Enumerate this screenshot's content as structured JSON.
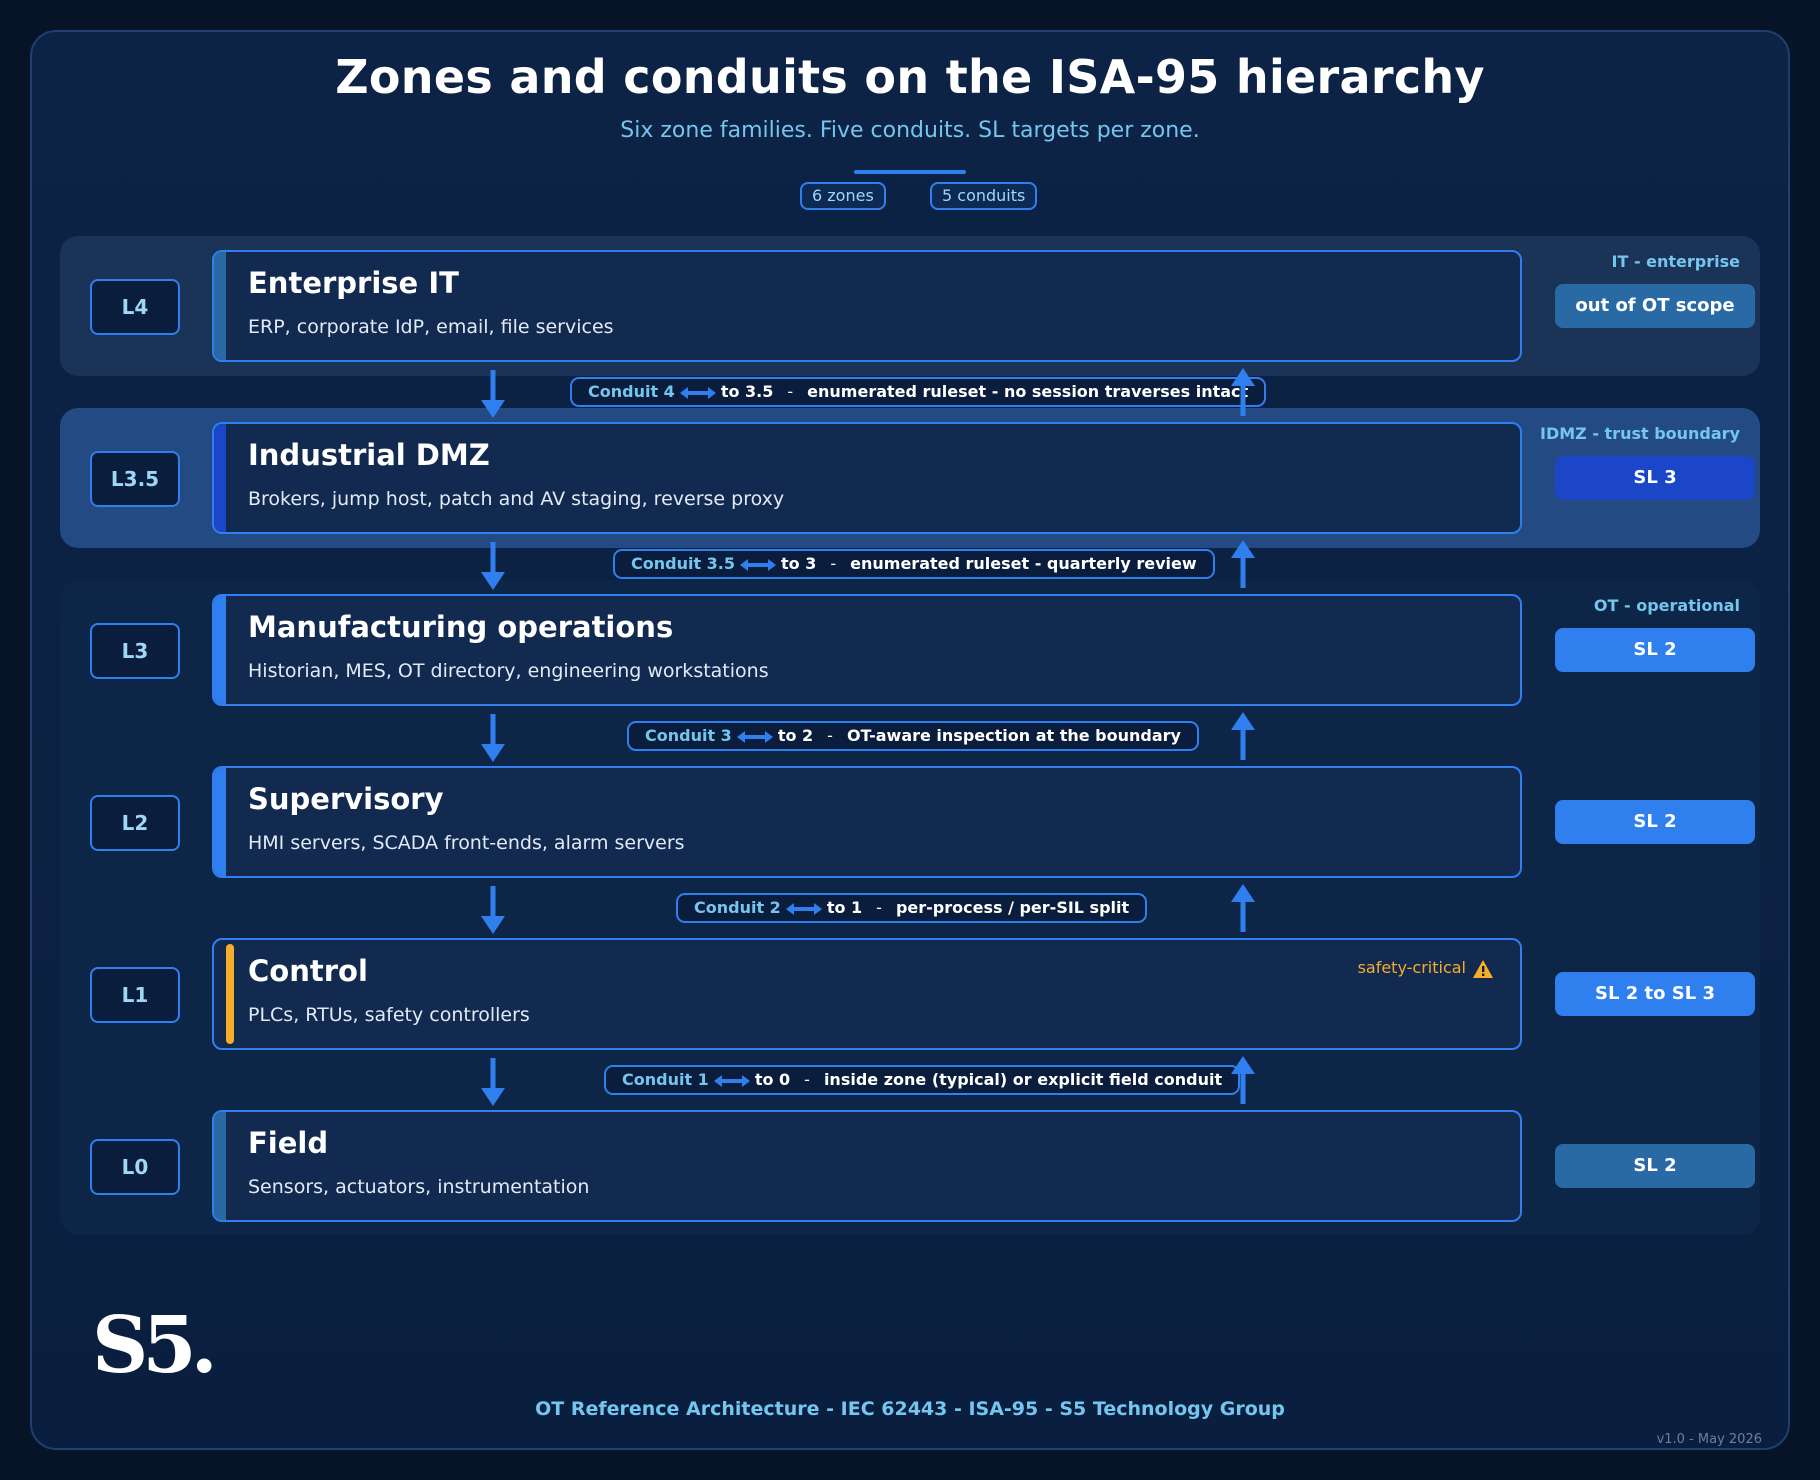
{
  "header": {
    "title": "Zones and conduits on the ISA-95 hierarchy",
    "subtitle": "Six zone families. Five conduits. SL targets per zone.",
    "zones_count": "6 zones",
    "conduits_count": "5 conduits"
  },
  "bands": {
    "it": "IT  -  enterprise",
    "idmz": "IDMZ  -  trust boundary",
    "ot": "OT  -  operational"
  },
  "zones": [
    {
      "level": "L4",
      "name": "Enterprise IT",
      "desc": "ERP, corporate IdP, email, file services",
      "sl": "out of OT scope",
      "bar_color": "#2a6aa4",
      "sl_color": "#2a6aa4"
    },
    {
      "level": "L3.5",
      "name": "Industrial DMZ",
      "desc": "Brokers, jump host, patch and AV staging, reverse proxy",
      "sl": "SL 3",
      "bar_color": "#1c46c8",
      "sl_color": "#1c46c8"
    },
    {
      "level": "L3",
      "name": "Manufacturing operations",
      "desc": "Historian, MES, OT directory, engineering workstations",
      "sl": "SL 2",
      "bar_color": "#2f7fef",
      "sl_color": "#2f7fef"
    },
    {
      "level": "L2",
      "name": "Supervisory",
      "desc": "HMI servers, SCADA front-ends, alarm servers",
      "sl": "SL 2",
      "bar_color": "#2f7fef",
      "sl_color": "#2f7fef"
    },
    {
      "level": "L1",
      "name": "Control",
      "desc": "PLCs, RTUs, safety controllers",
      "sl": "SL 2 to SL 3",
      "bar_color": "#f6ad2a",
      "sl_color": "#2f7fef",
      "flag": "safety-critical"
    },
    {
      "level": "L0",
      "name": "Field",
      "desc": "Sensors, actuators, instrumentation",
      "sl": "SL 2",
      "bar_color": "#2a6aa4",
      "sl_color": "#2a6aa4"
    }
  ],
  "conduits": [
    {
      "name": "Conduit 4",
      "to": "to 3.5",
      "note": "enumerated ruleset  -  no session traverses intact"
    },
    {
      "name": "Conduit 3.5",
      "to": "to 3",
      "note": "enumerated ruleset  -  quarterly review"
    },
    {
      "name": "Conduit 3",
      "to": "to 2",
      "note": "OT-aware inspection at the boundary"
    },
    {
      "name": "Conduit 2",
      "to": "to 1",
      "note": "per-process / per-SIL split"
    },
    {
      "name": "Conduit 1",
      "to": "to 0",
      "note": "inside zone (typical) or explicit field conduit"
    }
  ],
  "brand": {
    "logo": "S5.",
    "footer": "OT Reference Architecture  -  IEC 62443  -  ISA-95  -  S5 Technology Group",
    "version": "v1.0  -  May 2026"
  }
}
